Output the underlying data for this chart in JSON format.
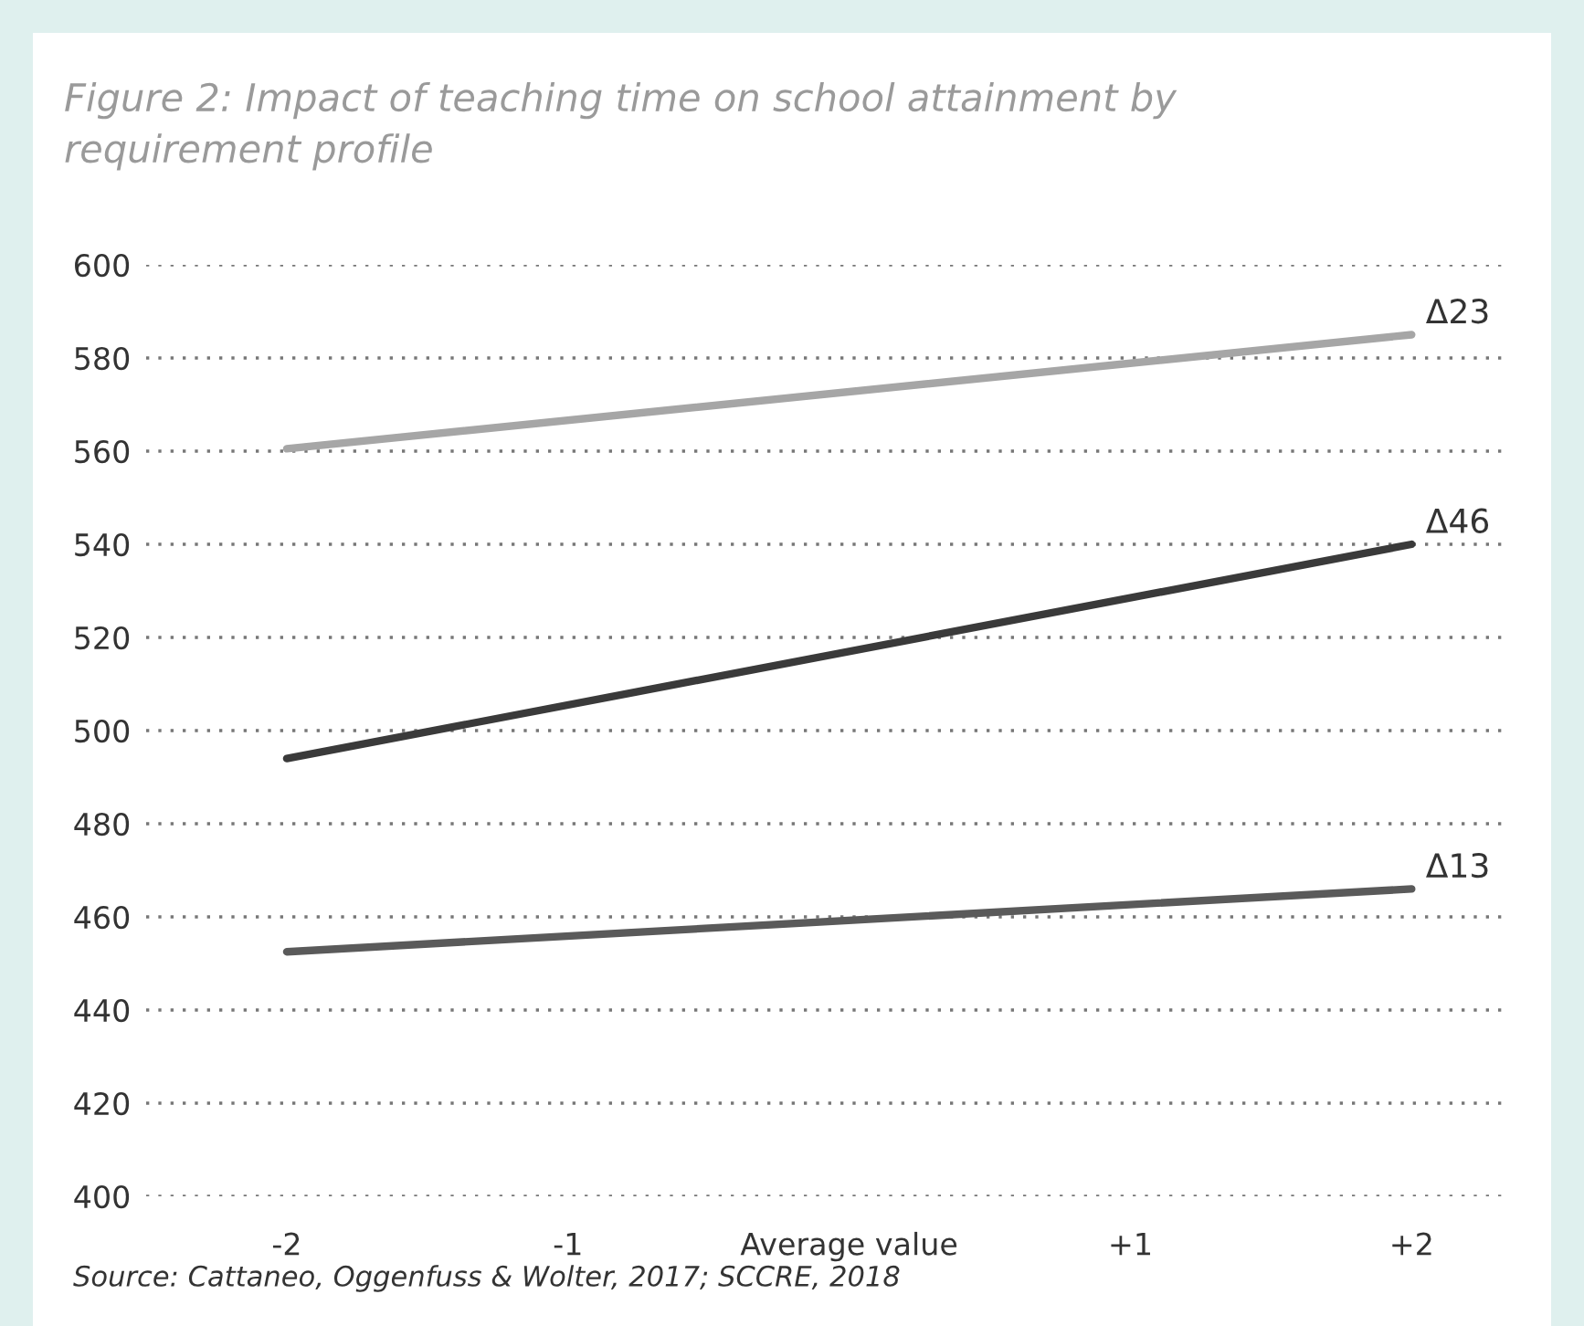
{
  "chart_data": {
    "type": "line",
    "title": "Figure 2: Impact of teaching time on school attainment by\nrequirement profile",
    "categories": [
      "-2",
      "-1",
      "Average value",
      "+1",
      "+2"
    ],
    "series": [
      {
        "name": "Δ23",
        "color": "#a6a6a6",
        "values": [
          560.5,
          null,
          null,
          null,
          585
        ]
      },
      {
        "name": "Δ46",
        "color": "#3a3a3a",
        "values": [
          494,
          null,
          null,
          null,
          540
        ]
      },
      {
        "name": "Δ13",
        "color": "#5a5a5a",
        "values": [
          452.5,
          null,
          null,
          null,
          466
        ]
      }
    ],
    "ylim": [
      400,
      600
    ],
    "yticks": [
      400,
      420,
      440,
      460,
      480,
      500,
      520,
      540,
      560,
      580,
      600
    ],
    "grid": "y",
    "line_style": "solid",
    "marker": "none",
    "annotations": [
      "Source: Cattaneo, Oggenfuss & Wolter, 2017; SCCRE, 2018"
    ]
  }
}
